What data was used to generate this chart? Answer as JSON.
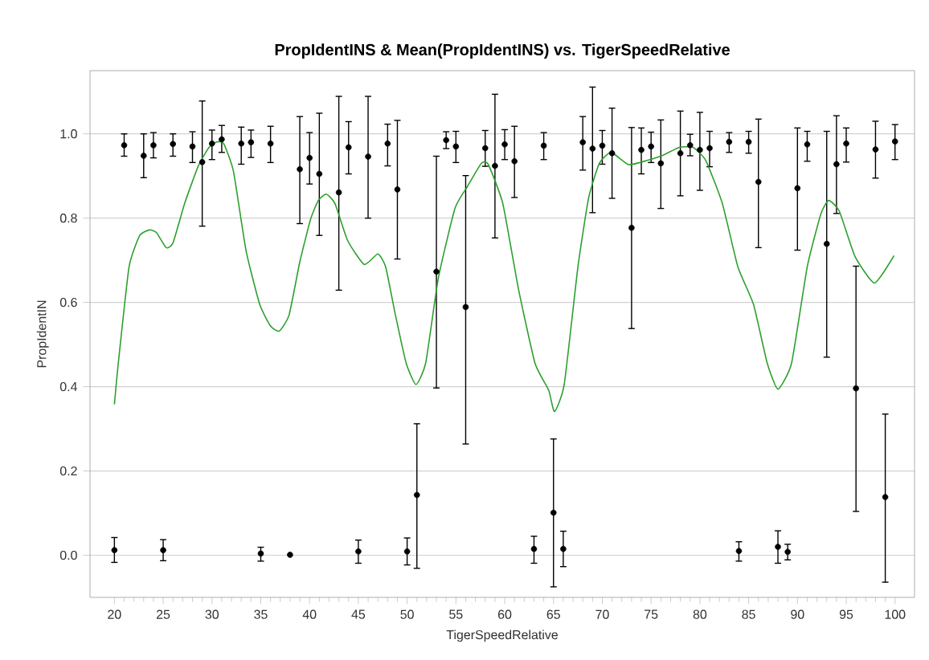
{
  "chart_data": {
    "type": "scatter",
    "title": "PropIdentINS & Mean(PropIdentINS) vs. TigerSpeedRelative",
    "xlabel": "TigerSpeedRelative",
    "ylabel": "PropIdentIN",
    "xlim": [
      17.5,
      102
    ],
    "ylim": [
      -0.1,
      1.15
    ],
    "xticks": [
      20,
      25,
      30,
      35,
      40,
      45,
      50,
      55,
      60,
      65,
      70,
      75,
      80,
      85,
      90,
      95,
      100
    ],
    "yticks": [
      {
        "value": 0,
        "label": "0.0"
      },
      {
        "value": 0.2,
        "label": "0.2"
      },
      {
        "value": 0.4,
        "label": "0.4"
      },
      {
        "value": 0.6,
        "label": "0.6"
      },
      {
        "value": 0.8,
        "label": "0.8"
      },
      {
        "value": 1,
        "label": "1.0"
      }
    ],
    "grid": "y",
    "marker": "circle",
    "series": [
      {
        "color": "#000000",
        "x": [
          20,
          21,
          23,
          24,
          25,
          26,
          28,
          29,
          30,
          31,
          33,
          34,
          35,
          36,
          38,
          39,
          40,
          41,
          43,
          44,
          45,
          46,
          48,
          49,
          50,
          51,
          53,
          54,
          55,
          56,
          58,
          59,
          60,
          61,
          63,
          64,
          65,
          66,
          68,
          69,
          70,
          71,
          73,
          74,
          75,
          76,
          78,
          79,
          80,
          81,
          83,
          84,
          85,
          86,
          88,
          89,
          90,
          91,
          93,
          94,
          95,
          96,
          98,
          99,
          100
        ],
        "values": [
          0.012,
          0.973,
          0.948,
          0.973,
          0.012,
          0.976,
          0.97,
          0.933,
          0.977,
          0.987,
          0.977,
          0.98,
          0.004,
          0.977,
          0.001,
          0.916,
          0.943,
          0.905,
          0.861,
          0.968,
          0.009,
          0.946,
          0.977,
          0.868,
          0.009,
          0.143,
          0.673,
          0.985,
          0.97,
          0.589,
          0.966,
          0.924,
          0.975,
          0.935,
          0.015,
          0.972,
          0.101,
          0.015,
          0.98,
          0.965,
          0.972,
          0.954,
          0.777,
          0.962,
          0.97,
          0.93,
          0.954,
          0.973,
          0.962,
          0.966,
          0.981,
          0.01,
          0.981,
          0.886,
          0.02,
          0.008,
          0.871,
          0.975,
          0.739,
          0.928,
          0.977,
          0.396,
          0.963,
          0.138,
          0.982
        ],
        "errors": [
          [
            -0.017,
            0.042
          ],
          [
            0.947,
            1.0
          ],
          [
            0.896,
            1.0
          ],
          [
            0.943,
            1.003
          ],
          [
            -0.013,
            0.037
          ],
          [
            0.947,
            1.0
          ],
          [
            0.932,
            1.005
          ],
          [
            0.781,
            1.078
          ],
          [
            0.939,
            1.009
          ],
          [
            0.956,
            1.02
          ],
          [
            0.928,
            1.016
          ],
          [
            0.944,
            1.009
          ],
          [
            -0.014,
            0.019
          ],
          [
            0.932,
            1.018
          ],
          null,
          [
            0.787,
            1.041
          ],
          [
            0.881,
            1.003
          ],
          [
            0.759,
            1.049
          ],
          [
            0.629,
            1.089
          ],
          [
            0.905,
            1.029
          ],
          [
            -0.019,
            0.036
          ],
          [
            0.8,
            1.089
          ],
          [
            0.924,
            1.023
          ],
          [
            0.703,
            1.032
          ],
          [
            -0.023,
            0.041
          ],
          [
            -0.031,
            0.312
          ],
          [
            0.397,
            0.947
          ],
          [
            0.965,
            1.005
          ],
          [
            0.932,
            1.006
          ],
          [
            0.264,
            0.901
          ],
          [
            0.923,
            1.008
          ],
          [
            0.753,
            1.094
          ],
          [
            0.939,
            1.01
          ],
          [
            0.849,
            1.018
          ],
          [
            -0.019,
            0.045
          ],
          [
            0.939,
            1.003
          ],
          [
            -0.075,
            0.276
          ],
          [
            -0.027,
            0.057
          ],
          [
            0.914,
            1.041
          ],
          [
            0.813,
            1.111
          ],
          [
            0.928,
            1.008
          ],
          [
            0.847,
            1.061
          ],
          [
            0.538,
            1.015
          ],
          [
            0.905,
            1.014
          ],
          [
            0.932,
            1.004
          ],
          [
            0.823,
            1.033
          ],
          [
            0.853,
            1.054
          ],
          [
            0.948,
            0.999
          ],
          [
            0.866,
            1.051
          ],
          [
            0.922,
            1.006
          ],
          [
            0.956,
            1.003
          ],
          [
            -0.014,
            0.032
          ],
          [
            0.954,
            1.006
          ],
          [
            0.73,
            1.035
          ],
          [
            -0.019,
            0.058
          ],
          [
            -0.011,
            0.026
          ],
          [
            0.724,
            1.014
          ],
          [
            0.935,
            1.006
          ],
          [
            0.47,
            1.006
          ],
          [
            0.811,
            1.043
          ],
          [
            0.933,
            1.014
          ],
          [
            0.104,
            0.686
          ],
          [
            0.895,
            1.03
          ],
          [
            -0.064,
            0.335
          ],
          [
            0.939,
            1.022
          ]
        ]
      },
      {
        "type": "line",
        "marker": "none",
        "color": "#2ca02c",
        "x": [
          20,
          20.4,
          21.5,
          22.6,
          23.6,
          24.3,
          25.3,
          26,
          27.2,
          28.6,
          29.7,
          30.5,
          31.2,
          32.2,
          33.5,
          34.9,
          36,
          36.9,
          37.9,
          39,
          40.1,
          40.9,
          41.7,
          42.6,
          43.9,
          45.6,
          47,
          47.8,
          48.8,
          49.9,
          50.9,
          51.9,
          53.2,
          54.9,
          56.1,
          57.6,
          58.3,
          59.8,
          61.4,
          63.1,
          64.5,
          65.1,
          66.1,
          67.5,
          68.6,
          69.7,
          70.9,
          72.7,
          74.6,
          76.2,
          77.9,
          79.3,
          80.6,
          82.3,
          83.9,
          85.5,
          86.9,
          88,
          89.4,
          91,
          92.4,
          93.2,
          94.3,
          95.9,
          97.9,
          99.9
        ],
        "values": [
          0.358,
          0.456,
          0.684,
          0.759,
          0.772,
          0.766,
          0.73,
          0.741,
          0.835,
          0.924,
          0.968,
          0.981,
          0.977,
          0.911,
          0.722,
          0.595,
          0.544,
          0.532,
          0.57,
          0.696,
          0.797,
          0.842,
          0.857,
          0.835,
          0.747,
          0.69,
          0.715,
          0.684,
          0.57,
          0.456,
          0.405,
          0.456,
          0.658,
          0.823,
          0.872,
          0.93,
          0.928,
          0.835,
          0.633,
          0.456,
          0.392,
          0.341,
          0.405,
          0.684,
          0.848,
          0.93,
          0.956,
          0.927,
          0.937,
          0.949,
          0.968,
          0.968,
          0.937,
          0.835,
          0.684,
          0.595,
          0.456,
          0.394,
          0.456,
          0.684,
          0.81,
          0.842,
          0.816,
          0.709,
          0.646,
          0.711
        ]
      }
    ]
  }
}
